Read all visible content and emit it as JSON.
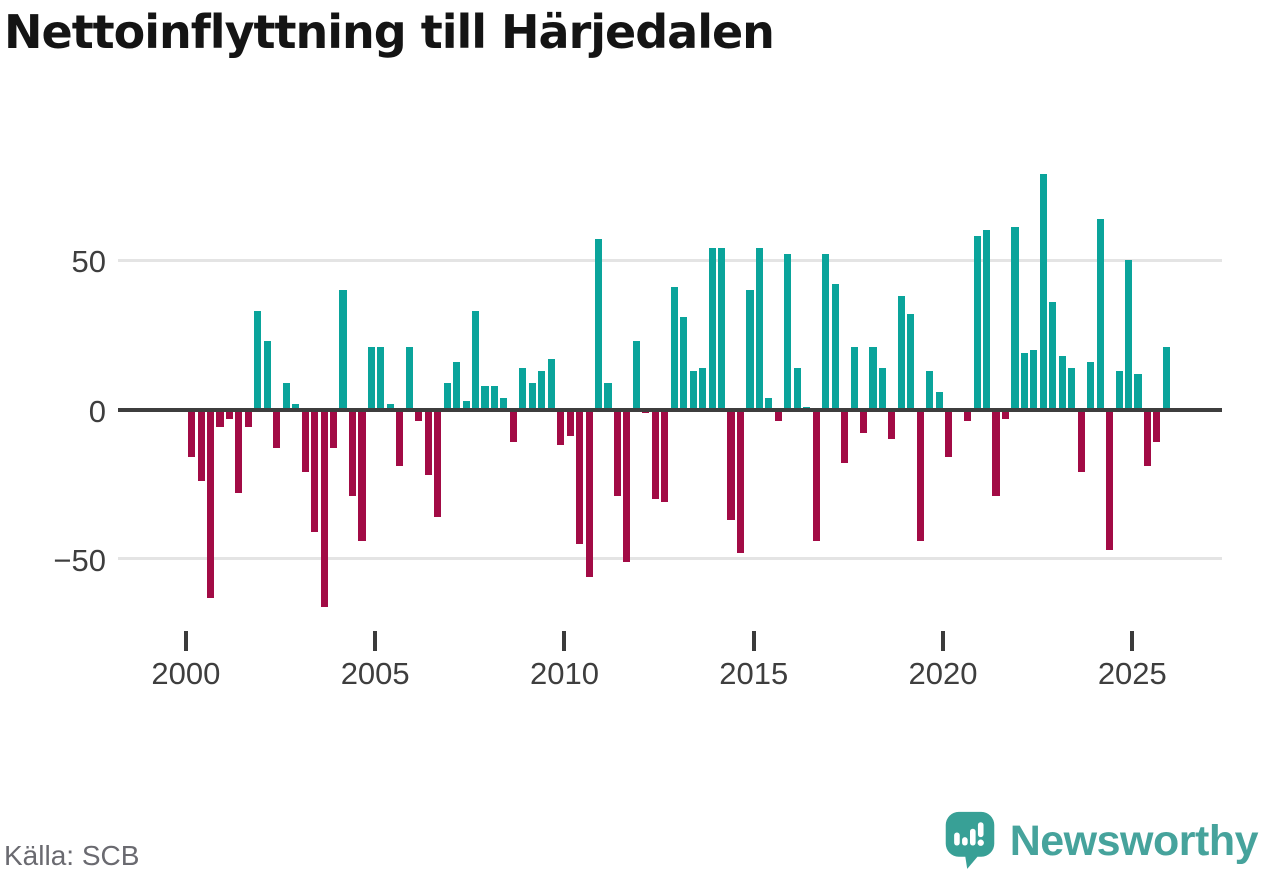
{
  "title": "Nettoinflyttning till Härjedalen",
  "source": "Källa: SCB",
  "brand": {
    "name": "Newsworthy",
    "icon": "speech-bubble-bar-chart-exclamation-icon",
    "icon_color": "#38a096",
    "text_color": "#46a39c"
  },
  "chart_data": {
    "type": "bar",
    "title": "Nettoinflyttning till Härjedalen",
    "frequency": "quarterly",
    "x_start": "2000Q1",
    "x_end": "2025Q4",
    "categories": [
      "2000Q1",
      "2000Q2",
      "2000Q3",
      "2000Q4",
      "2001Q1",
      "2001Q2",
      "2001Q3",
      "2001Q4",
      "2002Q1",
      "2002Q2",
      "2002Q3",
      "2002Q4",
      "2003Q1",
      "2003Q2",
      "2003Q3",
      "2003Q4",
      "2004Q1",
      "2004Q2",
      "2004Q3",
      "2004Q4",
      "2005Q1",
      "2005Q2",
      "2005Q3",
      "2005Q4",
      "2006Q1",
      "2006Q2",
      "2006Q3",
      "2006Q4",
      "2007Q1",
      "2007Q2",
      "2007Q3",
      "2007Q4",
      "2008Q1",
      "2008Q2",
      "2008Q3",
      "2008Q4",
      "2009Q1",
      "2009Q2",
      "2009Q3",
      "2009Q4",
      "2010Q1",
      "2010Q2",
      "2010Q3",
      "2010Q4",
      "2011Q1",
      "2011Q2",
      "2011Q3",
      "2011Q4",
      "2012Q1",
      "2012Q2",
      "2012Q3",
      "2012Q4",
      "2013Q1",
      "2013Q2",
      "2013Q3",
      "2013Q4",
      "2014Q1",
      "2014Q2",
      "2014Q3",
      "2014Q4",
      "2015Q1",
      "2015Q2",
      "2015Q3",
      "2015Q4",
      "2016Q1",
      "2016Q2",
      "2016Q3",
      "2016Q4",
      "2017Q1",
      "2017Q2",
      "2017Q3",
      "2017Q4",
      "2018Q1",
      "2018Q2",
      "2018Q3",
      "2018Q4",
      "2019Q1",
      "2019Q2",
      "2019Q3",
      "2019Q4",
      "2020Q1",
      "2020Q2",
      "2020Q3",
      "2020Q4",
      "2021Q1",
      "2021Q2",
      "2021Q3",
      "2021Q4",
      "2022Q1",
      "2022Q2",
      "2022Q3",
      "2022Q4",
      "2023Q1",
      "2023Q2",
      "2023Q3",
      "2023Q4",
      "2024Q1",
      "2024Q2",
      "2024Q3",
      "2024Q4",
      "2025Q1",
      "2025Q2",
      "2025Q3",
      "2025Q4"
    ],
    "values": [
      -16,
      -24,
      -63,
      -6,
      -3,
      -28,
      -6,
      33,
      23,
      -13,
      9,
      2,
      -21,
      -41,
      -66,
      -13,
      40,
      -29,
      -44,
      21,
      21,
      2,
      -19,
      21,
      -4,
      -22,
      -36,
      9,
      16,
      3,
      33,
      8,
      8,
      4,
      -11,
      14,
      9,
      13,
      17,
      -12,
      -9,
      -45,
      -56,
      57,
      9,
      -29,
      -51,
      23,
      -1,
      -30,
      -31,
      41,
      31,
      13,
      14,
      54,
      54,
      -37,
      -48,
      40,
      54,
      4,
      -4,
      52,
      14,
      1,
      -44,
      52,
      42,
      -18,
      21,
      -8,
      21,
      14,
      -10,
      38,
      32,
      -44,
      13,
      6,
      -16,
      0,
      -4,
      58,
      60,
      -29,
      -3,
      61,
      19,
      20,
      79,
      36,
      18,
      14,
      -21,
      16,
      64,
      -47,
      13,
      50,
      12,
      -19,
      -11,
      21
    ],
    "y_ticks": [
      50,
      0,
      -50
    ],
    "y_tick_labels": [
      "50",
      "0",
      "−50"
    ],
    "x_tick_years": [
      2000,
      2005,
      2010,
      2015,
      2020,
      2025
    ],
    "x_tick_labels": [
      "2000",
      "2005",
      "2010",
      "2015",
      "2020",
      "2025"
    ],
    "ylim": [
      -70,
      85
    ],
    "grid": "horizontal",
    "legend": "none",
    "positive_color": "#0aa49b",
    "negative_color": "#a20b45",
    "axis_line_color": "#3d3d3d",
    "gridline_color": "#e4e4e4"
  }
}
